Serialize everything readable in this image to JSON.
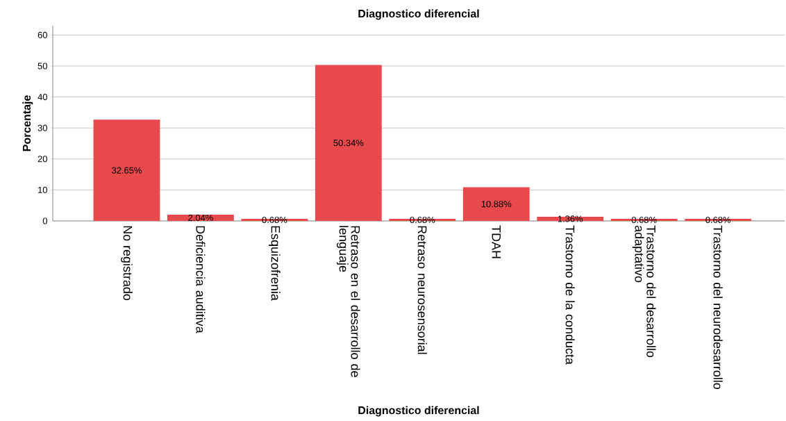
{
  "chart_data": {
    "type": "bar",
    "title": "Diagnostico diferencial",
    "xlabel": "Diagnostico diferencial",
    "ylabel": "Porcentaje",
    "categories": [
      "No registrado",
      "Deficiencia auditiva",
      "Esquizofrenia",
      "Retraso en el desarrollo de lenguaje",
      "Retraso neurosensorial",
      "TDAH",
      "Trastorno de la conducta",
      "Trastorno del desarrollo adaptativo",
      "Trastorno del neurodesarrollo"
    ],
    "values": [
      32.65,
      2.04,
      0.68,
      50.34,
      0.68,
      10.88,
      1.36,
      0.68,
      0.68
    ],
    "value_labels": [
      "32.65%",
      "2.04%",
      "0.68%",
      "50.34%",
      "0.68%",
      "10.88%",
      "1.36%",
      "0.68%",
      "0.68%"
    ],
    "color": "#e8494c",
    "ylim": [
      0,
      63
    ],
    "yticks": [
      0,
      10,
      20,
      30,
      40,
      50,
      60
    ],
    "grid": "y"
  }
}
